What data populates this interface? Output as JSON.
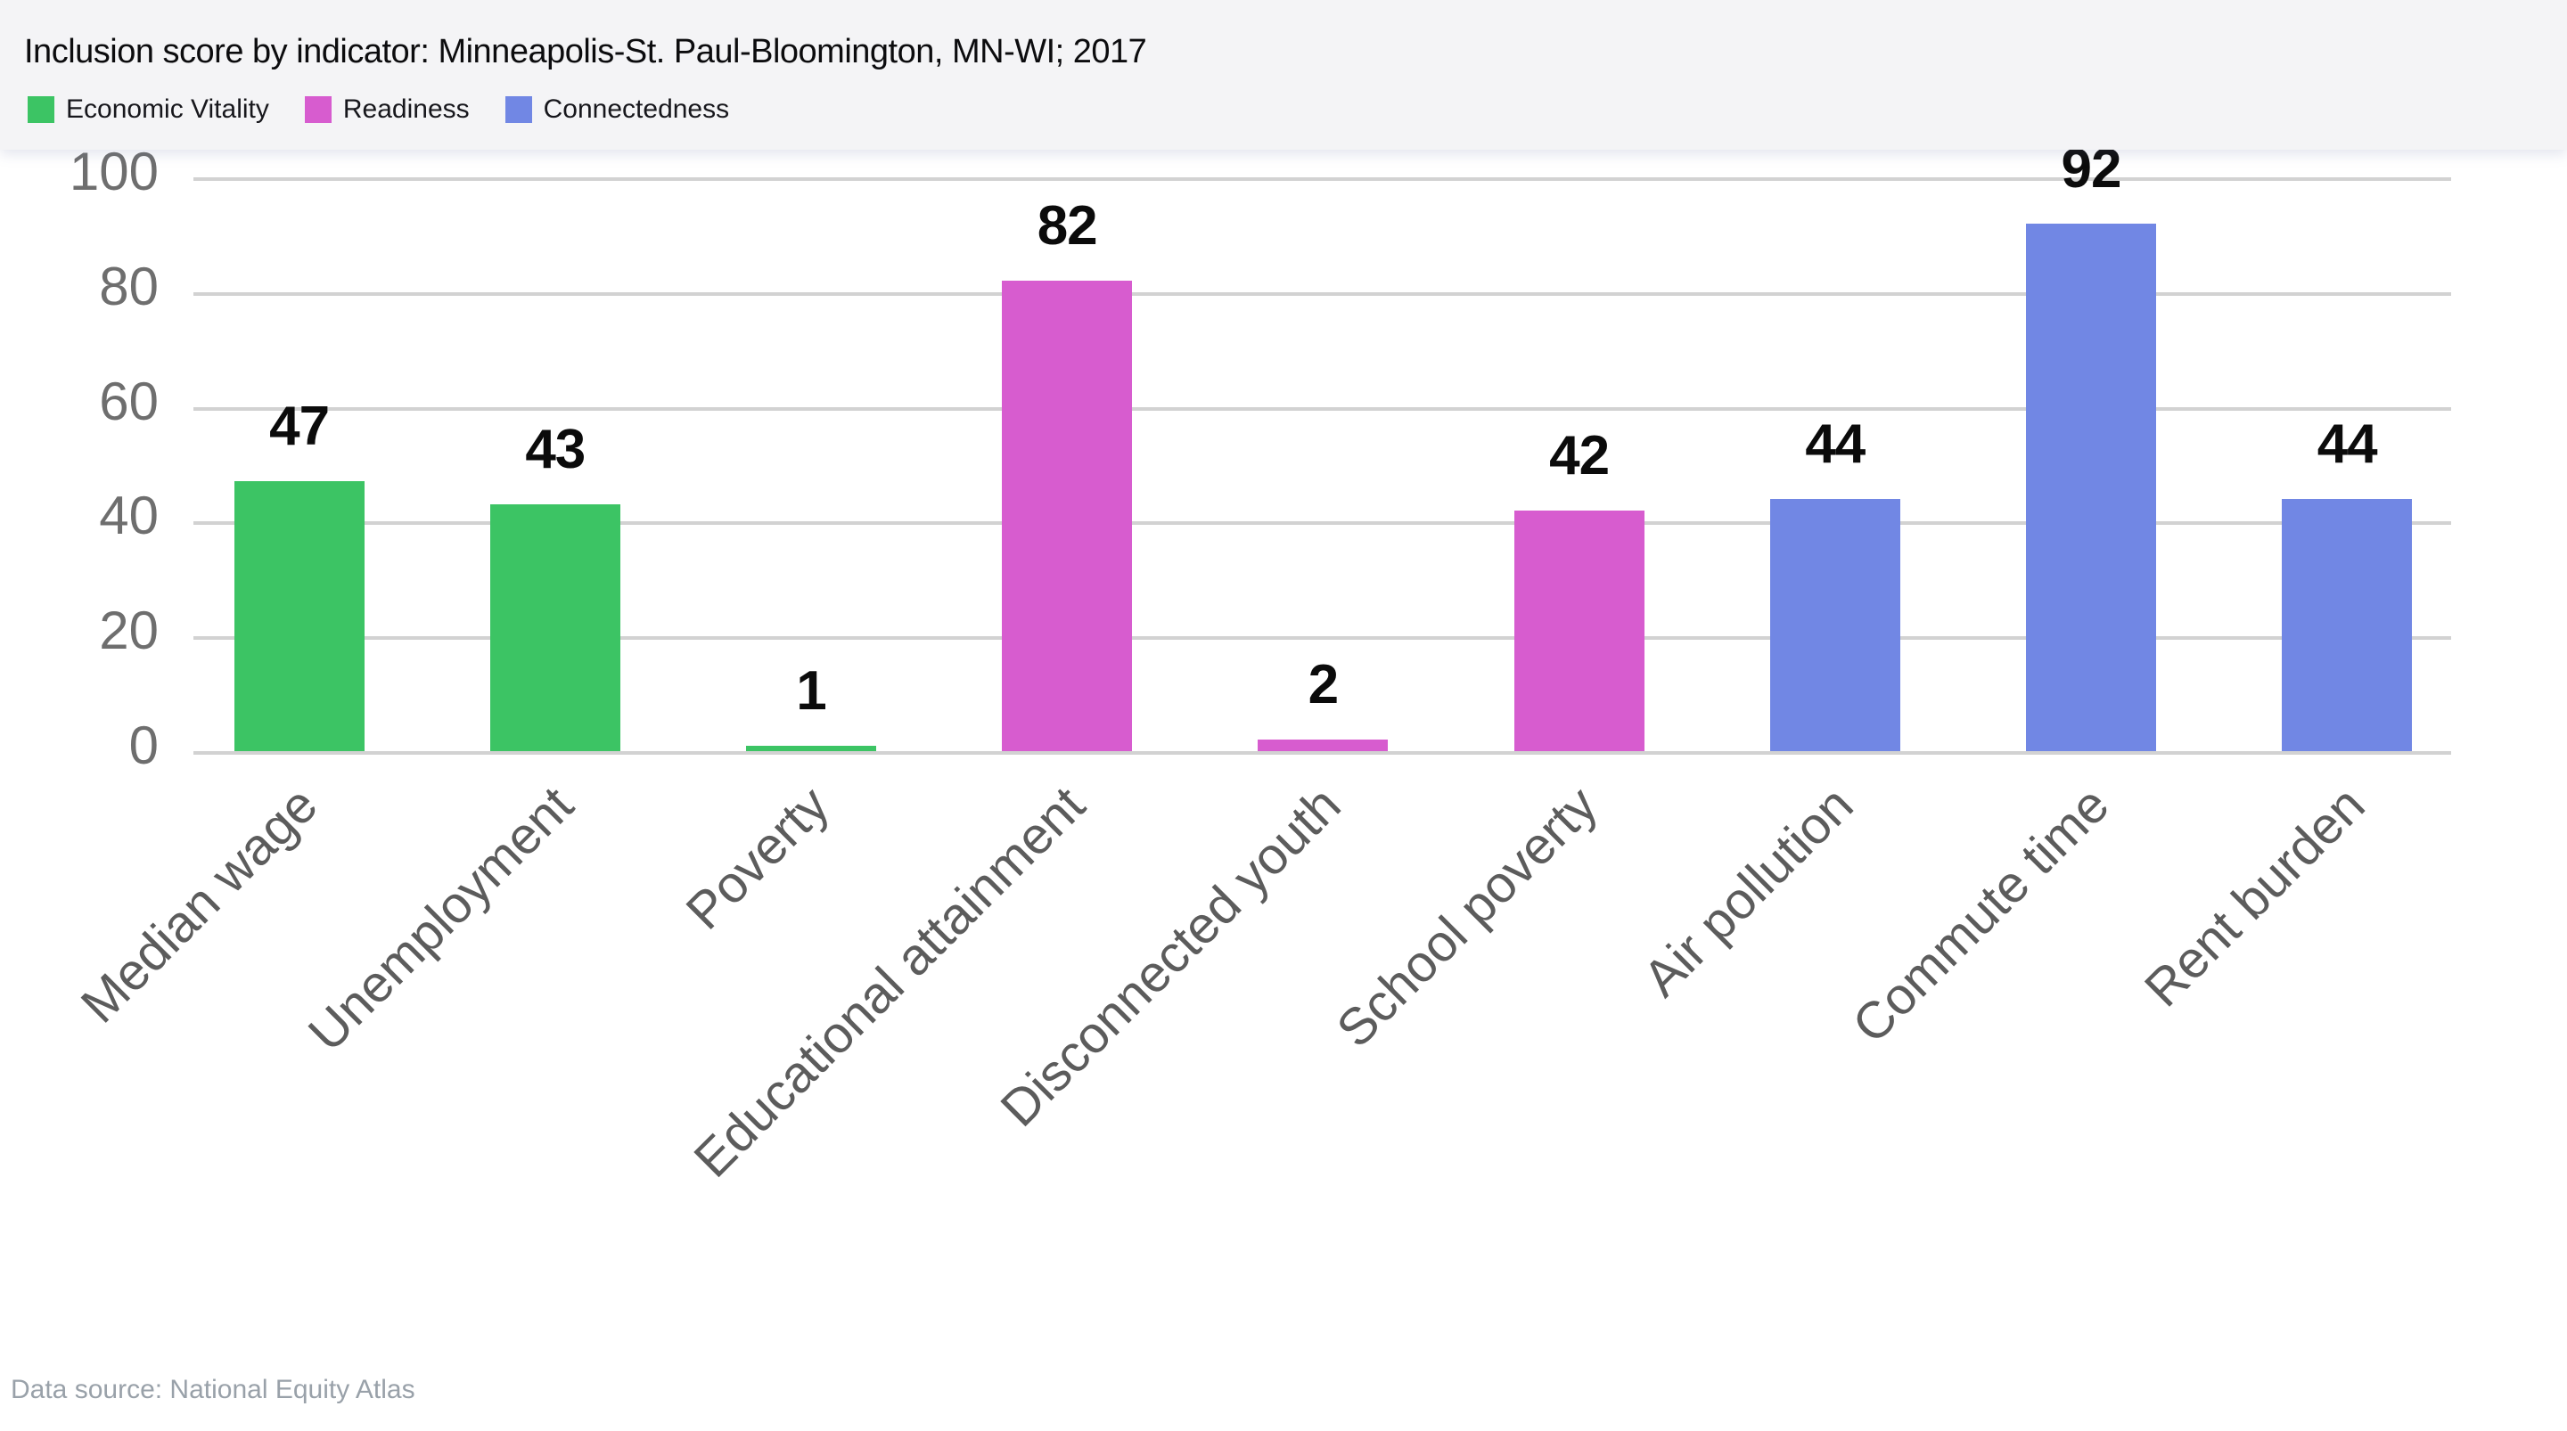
{
  "header": {
    "title": "Inclusion score by indicator: Minneapolis-St. Paul-Bloomington, MN-WI; 2017"
  },
  "legend": [
    {
      "label": "Economic Vitality",
      "color": "#3cc464"
    },
    {
      "label": "Readiness",
      "color": "#d75ccf"
    },
    {
      "label": "Connectedness",
      "color": "#7187e4"
    }
  ],
  "footer": {
    "text": "Data source: National Equity Atlas"
  },
  "chart_data": {
    "type": "bar",
    "title": "Inclusion score by indicator: Minneapolis-St. Paul-Bloomington, MN-WI; 2017",
    "categories": [
      "Median wage",
      "Unemployment",
      "Poverty",
      "Educational attainment",
      "Disconnected youth",
      "School poverty",
      "Air pollution",
      "Commute time",
      "Rent burden"
    ],
    "values": [
      47,
      43,
      1,
      82,
      2,
      42,
      44,
      92,
      44
    ],
    "groups": [
      "Economic Vitality",
      "Economic Vitality",
      "Economic Vitality",
      "Readiness",
      "Readiness",
      "Readiness",
      "Connectedness",
      "Connectedness",
      "Connectedness"
    ],
    "bar_value_labels": [
      "47",
      "43",
      "1",
      "82",
      "2",
      "42",
      "44",
      "92",
      "44"
    ],
    "xlabel": "",
    "ylabel": "",
    "yticks": [
      0,
      20,
      40,
      60,
      80,
      100
    ],
    "ylim": [
      0,
      100
    ],
    "grid": "horizontal",
    "legend_position": "top-left",
    "colors": {
      "economic_vitality": "#3cc464",
      "readiness": "#d75ccf",
      "connectedness": "#7187e4",
      "gridline": "#d2d2d2",
      "ytick_text": "#6e6e6e",
      "xtick_text": "#5c5c5c",
      "value_label_text": "#0b0b0b",
      "title_text": "#0c0c0e",
      "legend_text": "#17171c",
      "footer_text": "#99a1a9",
      "header_background": "#f4f4f6",
      "page_background": "#ffffff"
    }
  }
}
